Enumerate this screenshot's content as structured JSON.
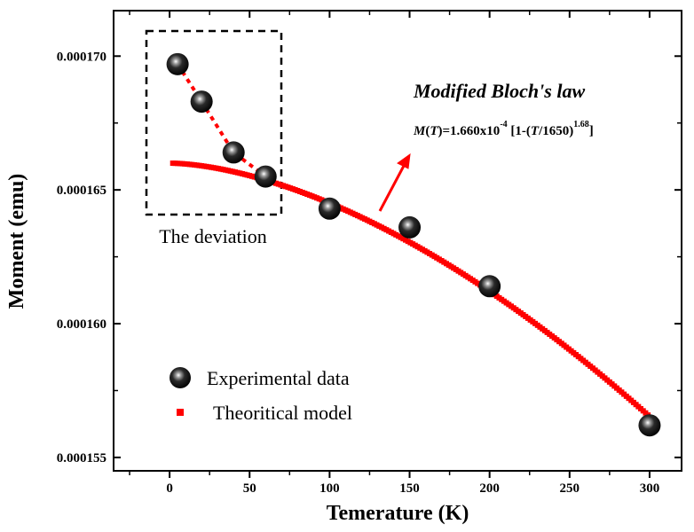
{
  "chart_data": {
    "type": "scatter",
    "xlabel": "Temerature (K)",
    "ylabel": "Moment (emu)",
    "xlim": [
      -35,
      320
    ],
    "ylim": [
      0.0001545,
      0.0001717
    ],
    "x_ticks": [
      0,
      50,
      100,
      150,
      200,
      250,
      300
    ],
    "y_ticks": [
      0.000155,
      0.00016,
      0.000165,
      0.00017
    ],
    "y_tick_labels": [
      "0.000155",
      "0.000160",
      "0.000165",
      "0.000170"
    ],
    "x_tick_labels": [
      "0",
      "50",
      "100",
      "150",
      "200",
      "250",
      "300"
    ],
    "series": [
      {
        "name": "Experimental data",
        "kind": "scatter",
        "marker": "sphere",
        "color": "#000000",
        "x": [
          5,
          20,
          40,
          60,
          100,
          150,
          200,
          300
        ],
        "y": [
          0.0001697,
          0.0001683,
          0.0001664,
          0.0001655,
          0.0001643,
          0.0001636,
          0.0001614,
          0.0001562
        ]
      },
      {
        "name": "Theoritical model",
        "kind": "line",
        "style": "dotted",
        "color": "#ff0000",
        "model": {
          "M0": 0.000166,
          "T0": 1650,
          "exponent": 1.68
        },
        "x_range": [
          2,
          300
        ]
      }
    ],
    "deviation_line": {
      "color": "#ff0000",
      "style": "dotted",
      "x": [
        5,
        20,
        40,
        60
      ],
      "y": [
        0.0001697,
        0.0001683,
        0.0001664,
        0.0001655
      ]
    },
    "annotations": {
      "model_title": "Modified Bloch's law",
      "equation": {
        "M": "M",
        "open_paren": "(",
        "T": "T",
        "middle": ")=1.660x10",
        "exp1": "-4",
        "bracket": " [1-(",
        "T2": "T",
        "close": "/1650)",
        "exp2": "1.68",
        "end": "]"
      },
      "deviation_label": "The deviation"
    },
    "legend": {
      "placement": "bottom-left"
    },
    "grid": false
  }
}
